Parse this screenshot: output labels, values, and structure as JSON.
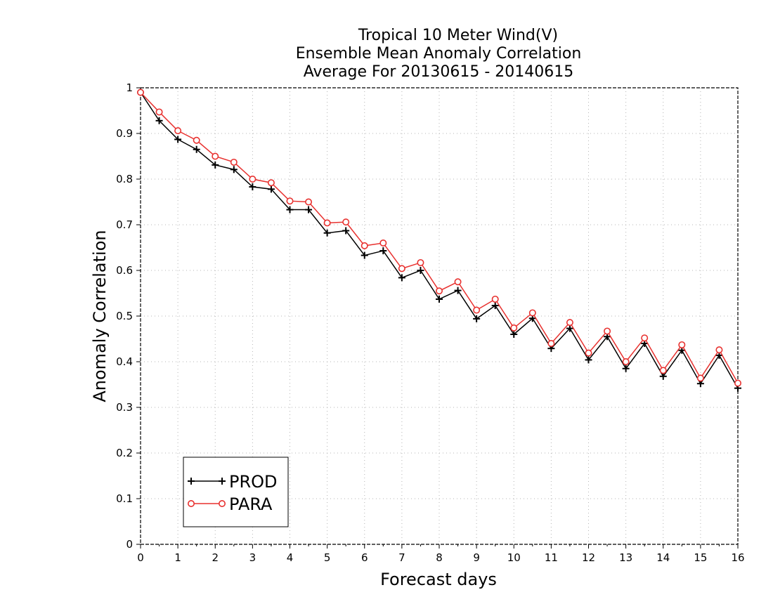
{
  "chart_data": {
    "type": "line",
    "title_lines": [
      "Tropical 10 Meter Wind(V)",
      "Ensemble Mean Anomaly Correlation",
      "Average For 20130615 - 20140615"
    ],
    "xlabel": "Forecast days",
    "ylabel": "Anomaly Correlation",
    "xlim": [
      0,
      16
    ],
    "ylim": [
      0,
      1
    ],
    "x_ticks": [
      0,
      1,
      2,
      3,
      4,
      5,
      6,
      7,
      8,
      9,
      10,
      11,
      12,
      13,
      14,
      15,
      16
    ],
    "y_ticks": [
      0,
      0.1,
      0.2,
      0.3,
      0.4,
      0.5,
      0.6,
      0.7,
      0.8,
      0.9,
      1
    ],
    "y_tick_labels": [
      "0",
      "0.1",
      "0.2",
      "0.3",
      "0.4",
      "0.5",
      "0.6",
      "0.7",
      "0.8",
      "0.9",
      "1"
    ],
    "grid": true,
    "legend_position": "bottom-left",
    "x": [
      0,
      0.5,
      1,
      1.5,
      2,
      2.5,
      3,
      3.5,
      4,
      4.5,
      5,
      5.5,
      6,
      6.5,
      7,
      7.5,
      8,
      8.5,
      9,
      9.5,
      10,
      10.5,
      11,
      11.5,
      12,
      12.5,
      13,
      13.5,
      14,
      14.5,
      15,
      15.5,
      16
    ],
    "series": [
      {
        "name": "PROD",
        "color": "#000000",
        "marker": "plus",
        "values": [
          0.99,
          0.928,
          0.887,
          0.865,
          0.831,
          0.821,
          0.783,
          0.778,
          0.733,
          0.733,
          0.682,
          0.687,
          0.633,
          0.643,
          0.584,
          0.6,
          0.537,
          0.556,
          0.494,
          0.523,
          0.46,
          0.495,
          0.429,
          0.473,
          0.404,
          0.455,
          0.385,
          0.44,
          0.368,
          0.425,
          0.352,
          0.414,
          0.342
        ]
      },
      {
        "name": "PARA",
        "color": "#e8312f",
        "marker": "circle",
        "values": [
          0.99,
          0.947,
          0.906,
          0.885,
          0.85,
          0.837,
          0.8,
          0.792,
          0.752,
          0.75,
          0.704,
          0.706,
          0.654,
          0.66,
          0.604,
          0.617,
          0.555,
          0.575,
          0.513,
          0.537,
          0.474,
          0.507,
          0.44,
          0.486,
          0.419,
          0.467,
          0.4,
          0.452,
          0.381,
          0.437,
          0.364,
          0.426,
          0.353
        ]
      }
    ]
  }
}
